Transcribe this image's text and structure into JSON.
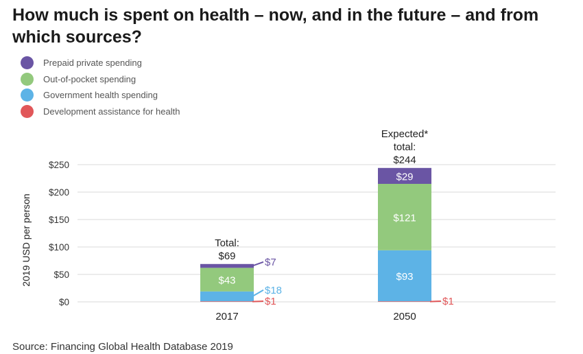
{
  "title": "How much is spent on health – now, and in the future – and from which sources?",
  "source": "Source: Financing Global Health Database 2019",
  "colors": {
    "prepaid": "#6a55a4",
    "oop": "#93c97d",
    "gov": "#5db3e6",
    "dah": "#e15759"
  },
  "legend": [
    {
      "label": "Prepaid private spending",
      "color": "#6a55a4"
    },
    {
      "label": "Out-of-pocket spending",
      "color": "#93c97d"
    },
    {
      "label": "Government health spending",
      "color": "#5db3e6"
    },
    {
      "label": "Development assistance for health",
      "color": "#e15759"
    }
  ],
  "chart_data": {
    "type": "bar",
    "stacked": true,
    "categories": [
      "2017",
      "2050"
    ],
    "ylabel": "2019 USD per person",
    "ylim": [
      0,
      250
    ],
    "yticks": [
      0,
      50,
      100,
      150,
      200,
      250
    ],
    "ytick_labels": [
      "$0",
      "$50",
      "$100",
      "$150",
      "$200",
      "$250"
    ],
    "grid": true,
    "series": [
      {
        "name": "Development assistance for health",
        "values": [
          1,
          1
        ],
        "labels": [
          "$1",
          "$1"
        ],
        "color": "#e15759"
      },
      {
        "name": "Government health spending",
        "values": [
          18,
          93
        ],
        "labels": [
          "$18",
          "$93"
        ],
        "color": "#5db3e6"
      },
      {
        "name": "Out-of-pocket spending",
        "values": [
          43,
          121
        ],
        "labels": [
          "$43",
          "$121"
        ],
        "color": "#93c97d"
      },
      {
        "name": "Prepaid private spending",
        "values": [
          7,
          29
        ],
        "labels": [
          "$7",
          "$29"
        ],
        "color": "#6a55a4"
      }
    ],
    "totals": [
      {
        "lines": [
          "Total:",
          "$69"
        ],
        "value": 69
      },
      {
        "lines": [
          "Expected*",
          "total:",
          "$244"
        ],
        "value": 244
      }
    ]
  }
}
